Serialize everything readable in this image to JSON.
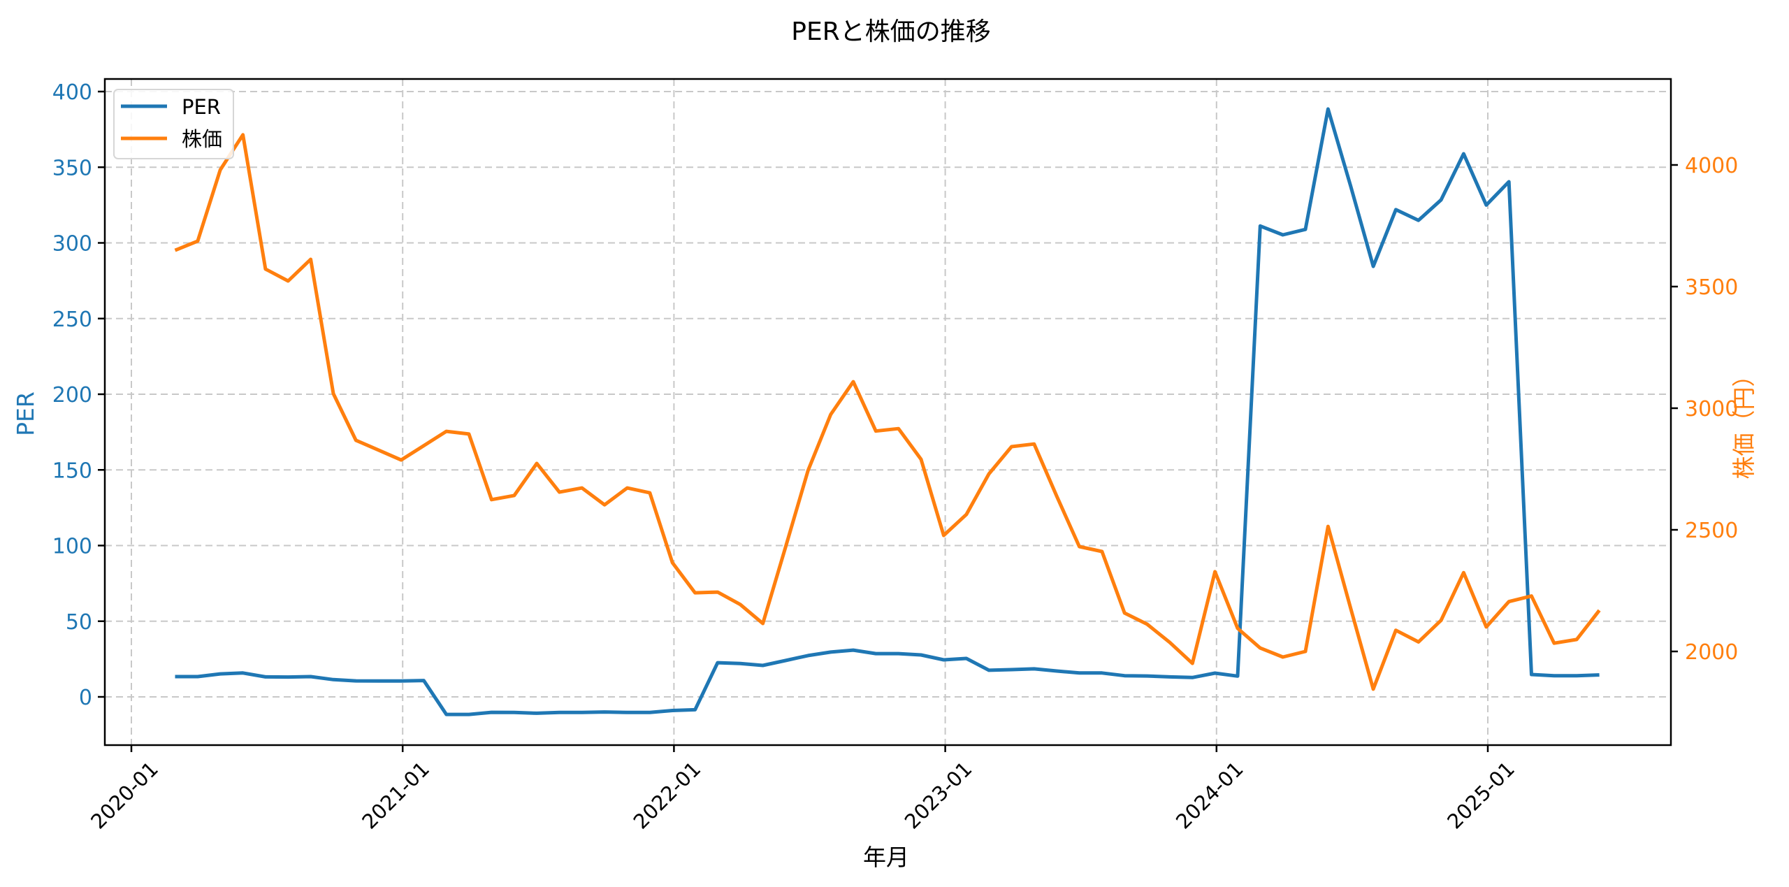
{
  "chart_data": {
    "type": "line",
    "title": "PERと株価の推移",
    "xlabel": "年月",
    "ylabel": "PER",
    "ylabel_right": "株価（円）",
    "x_ticks": [
      "2020-01",
      "2021-01",
      "2022-01",
      "2023-01",
      "2024-01",
      "2025-01"
    ],
    "y_ticks_left": [
      0,
      50,
      100,
      150,
      200,
      250,
      300,
      350,
      400
    ],
    "y_ticks_right": [
      2000,
      2500,
      3000,
      3500,
      4000
    ],
    "ylim_left": [
      -32,
      412
    ],
    "ylim_right": [
      1610,
      4340
    ],
    "grid": true,
    "legend_position": "upper left",
    "colors": {
      "PER": "#1f77b4",
      "株価": "#ff7f0e"
    },
    "x": [
      "2020-02",
      "2020-03",
      "2020-04",
      "2020-05",
      "2020-06",
      "2020-07",
      "2020-08",
      "2020-09",
      "2020-10",
      "2020-11",
      "2020-12",
      "2021-01",
      "2021-02",
      "2021-03",
      "2021-04",
      "2021-05",
      "2021-06",
      "2021-07",
      "2021-08",
      "2021-09",
      "2021-10",
      "2021-11",
      "2021-12",
      "2022-01",
      "2022-02",
      "2022-03",
      "2022-04",
      "2022-05",
      "2022-06",
      "2022-07",
      "2022-08",
      "2022-09",
      "2022-10",
      "2022-11",
      "2022-12",
      "2023-01",
      "2023-02",
      "2023-03",
      "2023-04",
      "2023-05",
      "2023-06",
      "2023-07",
      "2023-08",
      "2023-09",
      "2023-10",
      "2023-11",
      "2023-12",
      "2024-01",
      "2024-02",
      "2024-03",
      "2024-04",
      "2024-05",
      "2024-06",
      "2024-07",
      "2024-08",
      "2024-09",
      "2024-10",
      "2024-11",
      "2024-12",
      "2025-01",
      "2025-02",
      "2025-03",
      "2025-04",
      "2025-05"
    ],
    "series": [
      {
        "name": "PER",
        "axis": "left",
        "values": [
          13.4,
          13.4,
          15.2,
          15.8,
          13.2,
          13.1,
          13.4,
          11.4,
          10.6,
          10.5,
          10.5,
          10.8,
          -11.6,
          -11.6,
          -10.2,
          -10.3,
          -10.8,
          -10.3,
          -10.3,
          -10.0,
          -10.3,
          -10.3,
          -9.0,
          -8.5,
          22.6,
          22.1,
          20.8,
          24.0,
          27.3,
          29.6,
          30.9,
          28.6,
          28.6,
          27.7,
          24.5,
          25.4,
          17.6,
          18.0,
          18.5,
          17.1,
          15.8,
          15.8,
          14.0,
          13.8,
          13.2,
          12.8,
          15.7,
          13.7,
          311.2,
          305.3,
          308.9,
          388.5,
          337.6,
          284.5,
          322.0,
          314.9,
          328.4,
          358.9,
          325.0,
          340.4,
          14.8,
          14.0,
          14.0,
          14.5
        ]
      },
      {
        "name": "株価",
        "axis": "right",
        "values": [
          3649,
          3687,
          3980,
          4124,
          3572,
          3523,
          3612,
          3060,
          2868,
          2828,
          2787,
          2846,
          2905,
          2894,
          2624,
          2641,
          2773,
          2655,
          2672,
          2603,
          2672,
          2652,
          2365,
          2241,
          2244,
          2193,
          2115,
          2428,
          2744,
          2974,
          3109,
          2906,
          2916,
          2790,
          2477,
          2563,
          2730,
          2842,
          2853,
          2638,
          2431,
          2411,
          2158,
          2112,
          2037,
          1951,
          2328,
          2095,
          2014,
          1977,
          2000,
          2514,
          2178,
          1845,
          2087,
          2039,
          2128,
          2324,
          2101,
          2205,
          2228,
          2034,
          2049,
          2169
        ]
      }
    ]
  },
  "legend": {
    "items": [
      {
        "label": "PER",
        "color": "#1f77b4"
      },
      {
        "label": "株価",
        "color": "#ff7f0e"
      }
    ]
  }
}
